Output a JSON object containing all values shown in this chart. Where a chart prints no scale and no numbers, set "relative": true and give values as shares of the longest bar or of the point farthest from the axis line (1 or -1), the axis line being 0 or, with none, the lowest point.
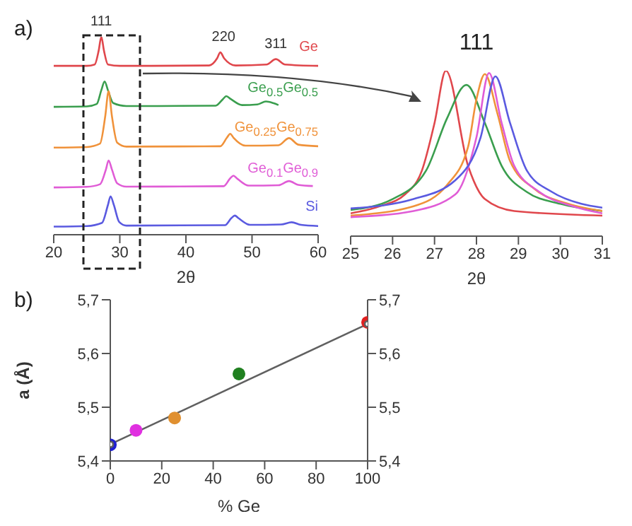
{
  "chart_data": [
    {
      "type": "line",
      "relative": true,
      "xlabel": "2θ",
      "xlim": [
        20,
        60
      ],
      "xticks": [
        20,
        30,
        40,
        50,
        60
      ],
      "annotations": [
        "a)",
        {
          "text": "111",
          "x": 27.2,
          "y": 1
        },
        {
          "text": "220",
          "x": 45.7,
          "y": 0.921
        },
        {
          "text": "311",
          "x": 53.6,
          "y": 0.887
        }
      ],
      "series": [
        {
          "name": "Ge",
          "color": "#e0474c",
          "x": [
            20,
            25,
            26.2,
            26.8,
            27.2,
            27.6,
            28.2,
            30,
            43.5,
            44.7,
            45.2,
            45.8,
            47.5,
            52.2,
            53.6,
            55,
            60
          ],
          "values": [
            0.853,
            0.853,
            0.86,
            0.93,
            1,
            0.93,
            0.86,
            0.853,
            0.855,
            0.89,
            0.921,
            0.89,
            0.855,
            0.86,
            0.887,
            0.86,
            0.853
          ]
        },
        {
          "name": "Ge$_{0.5}$Ge$_{0.5}$",
          "color": "#3a9e4e",
          "x": [
            20,
            25,
            26.5,
            27.2,
            27.7,
            28.2,
            29,
            31,
            44.5,
            45.6,
            46.1,
            46.8,
            48.5,
            50.8,
            52.1,
            53.2,
            54
          ],
          "values": [
            0.646,
            0.648,
            0.66,
            0.73,
            0.774,
            0.73,
            0.665,
            0.65,
            0.652,
            0.685,
            0.7,
            0.685,
            0.655,
            0.658,
            0.673,
            0.665,
            0.655
          ]
        },
        {
          "name": "Ge$_{0.25}$Ge$_{0.75}$",
          "color": "#f0923a",
          "x": [
            20,
            25,
            27,
            27.8,
            28.3,
            28.8,
            29.6,
            31,
            45.2,
            46.2,
            46.7,
            47.2,
            49,
            54,
            55.6,
            57,
            60
          ],
          "values": [
            0.44,
            0.443,
            0.46,
            0.6,
            0.725,
            0.6,
            0.465,
            0.445,
            0.447,
            0.49,
            0.51,
            0.49,
            0.45,
            0.452,
            0.488,
            0.455,
            0.447
          ]
        },
        {
          "name": "Ge$_{0.1}$Ge$_{0.9}$",
          "color": "#e05cd6",
          "x": [
            20,
            25,
            27,
            27.9,
            28.3,
            28.8,
            29.6,
            31,
            45.7,
            46.7,
            47.2,
            47.7,
            49.5,
            54,
            55.6,
            57,
            59.2
          ],
          "values": [
            0.239,
            0.242,
            0.255,
            0.33,
            0.375,
            0.33,
            0.26,
            0.243,
            0.245,
            0.285,
            0.298,
            0.285,
            0.248,
            0.25,
            0.271,
            0.252,
            0.246
          ]
        },
        {
          "name": "Si",
          "color": "#5a5ae0",
          "x": [
            20,
            25,
            27.3,
            28.2,
            28.6,
            29.1,
            29.9,
            31,
            45.9,
            46.9,
            47.4,
            47.9,
            49.7,
            54.4,
            56,
            57.4,
            60
          ],
          "values": [
            0.041,
            0.044,
            0.06,
            0.15,
            0.194,
            0.15,
            0.065,
            0.046,
            0.048,
            0.085,
            0.097,
            0.085,
            0.05,
            0.052,
            0.063,
            0.05,
            0.044
          ]
        }
      ]
    },
    {
      "type": "line",
      "relative": true,
      "title": "111",
      "xlabel": "2θ",
      "xlim": [
        25,
        31
      ],
      "xticks": [
        25,
        26,
        27,
        28,
        29,
        30,
        31
      ],
      "series": [
        {
          "color": "#e0474c",
          "x": [
            25,
            25.7,
            26.3,
            26.7,
            27,
            27.27,
            27.8,
            28.2,
            28.9,
            31
          ],
          "values": [
            0.138,
            0.181,
            0.253,
            0.397,
            0.684,
            1,
            0.425,
            0.224,
            0.152,
            0.124
          ]
        },
        {
          "color": "#3a9e4e",
          "x": [
            25,
            26,
            26.8,
            27.3,
            27.76,
            28.2,
            28.6,
            29.2,
            30,
            31
          ],
          "values": [
            0.158,
            0.224,
            0.397,
            0.713,
            0.914,
            0.684,
            0.425,
            0.267,
            0.195,
            0.152
          ]
        },
        {
          "color": "#f0923a",
          "x": [
            25,
            26.5,
            27.3,
            27.8,
            28,
            28.2,
            28.5,
            28.8,
            29.4,
            30.2,
            31
          ],
          "values": [
            0.124,
            0.181,
            0.31,
            0.54,
            0.828,
            0.98,
            0.741,
            0.454,
            0.282,
            0.195,
            0.152
          ]
        },
        {
          "color": "#e05cd6",
          "x": [
            25,
            26.5,
            27.5,
            28,
            28.3,
            28.6,
            28.9,
            29.5,
            30.3,
            31
          ],
          "values": [
            0.115,
            0.152,
            0.253,
            0.598,
            0.986,
            0.684,
            0.425,
            0.267,
            0.181,
            0.138
          ]
        },
        {
          "color": "#5a5ae0",
          "x": [
            25,
            26.5,
            27.5,
            28.1,
            28.45,
            28.8,
            29.2,
            29.8,
            30.5,
            31
          ],
          "values": [
            0.167,
            0.224,
            0.339,
            0.598,
            0.966,
            0.684,
            0.397,
            0.267,
            0.195,
            0.172
          ]
        }
      ]
    },
    {
      "type": "scatter",
      "marker": "circle",
      "xlabel": "% Ge",
      "ylabel": "a (Å)",
      "annotations": [
        "b)"
      ],
      "xlim": [
        0,
        100
      ],
      "xticks": [
        0,
        20,
        40,
        60,
        80,
        100
      ],
      "ylim": [
        5.4,
        5.7
      ],
      "yticks": [
        {
          "value": 5.4,
          "label": "5,4"
        },
        {
          "value": 5.5,
          "label": "5,5"
        },
        {
          "value": 5.6,
          "label": "5,6"
        },
        {
          "value": 5.7,
          "label": "5,7"
        }
      ],
      "y2lim": [
        5.4,
        5.7
      ],
      "y2ticks": [
        {
          "value": 5.4,
          "label": "5,4"
        },
        {
          "value": 5.5,
          "label": "5,5"
        },
        {
          "value": 5.6,
          "label": "5,6"
        },
        {
          "value": 5.7,
          "label": "5,7"
        }
      ],
      "x": [
        0,
        10,
        25,
        50,
        100
      ],
      "series": [
        {
          "values": [
            5.43,
            5.457,
            5.48,
            5.562,
            5.658
          ],
          "colors": [
            "#2020d0",
            "#e030e0",
            "#e09030",
            "#208020",
            "#e02020"
          ]
        },
        {
          "type": "line",
          "x": [
            0,
            100
          ],
          "values": [
            5.431,
            5.655
          ],
          "color": "#606060"
        }
      ]
    }
  ]
}
